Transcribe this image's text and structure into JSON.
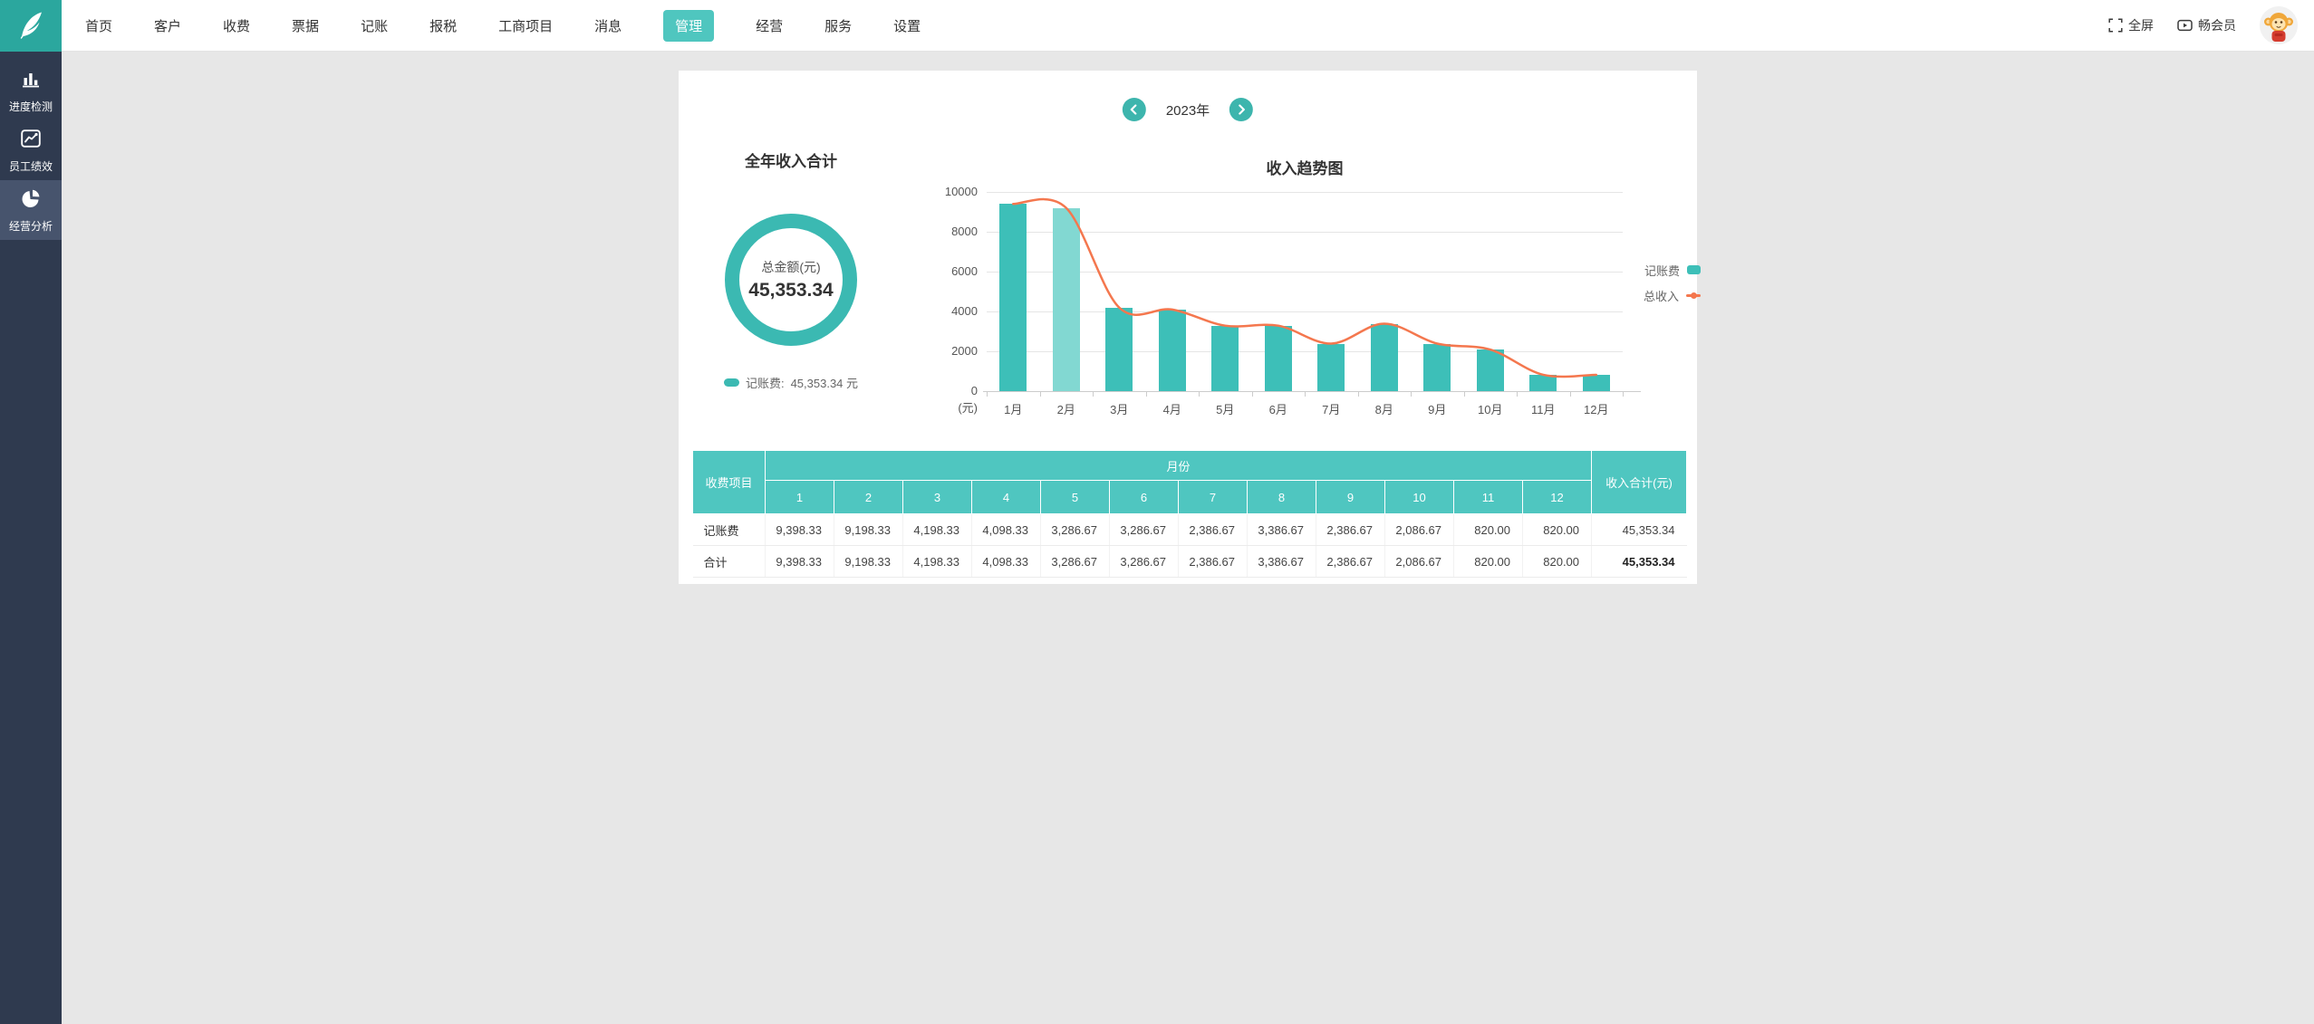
{
  "topbar": {
    "nav": [
      {
        "label": "首页",
        "active": false
      },
      {
        "label": "客户",
        "active": false
      },
      {
        "label": "收费",
        "active": false
      },
      {
        "label": "票据",
        "active": false
      },
      {
        "label": "记账",
        "active": false
      },
      {
        "label": "报税",
        "active": false
      },
      {
        "label": "工商项目",
        "active": false
      },
      {
        "label": "消息",
        "active": false
      },
      {
        "label": "管理",
        "active": true
      },
      {
        "label": "经营",
        "active": false
      },
      {
        "label": "服务",
        "active": false
      },
      {
        "label": "设置",
        "active": false
      }
    ],
    "right": {
      "fullscreen_label": "全屏",
      "member_label": "畅会员"
    }
  },
  "sidebar": {
    "items": [
      {
        "label": "进度检测",
        "icon": "bar-chart-icon",
        "active": false
      },
      {
        "label": "员工绩效",
        "icon": "line-chart-icon",
        "active": false
      },
      {
        "label": "经营分析",
        "icon": "pie-chart-icon",
        "active": true
      }
    ]
  },
  "main": {
    "year_selector": {
      "year": "2023年"
    },
    "summary": {
      "title": "全年收入合计",
      "donut_center_label": "总金额(元)",
      "donut_center_value": "45,353.34",
      "legend_label": "记账费:",
      "legend_value": "45,353.34 元"
    }
  },
  "chart_data": [
    {
      "type": "pie",
      "title": "全年收入合计",
      "center_label": "总金额(元)",
      "center_value": 45353.34,
      "series": [
        {
          "name": "记账费",
          "value": 45353.34,
          "color": "#3bb9b2"
        }
      ],
      "legend_position": "bottom"
    },
    {
      "type": "bar-line",
      "title": "收入趋势图",
      "categories": [
        "1月",
        "2月",
        "3月",
        "4月",
        "5月",
        "6月",
        "7月",
        "8月",
        "9月",
        "10月",
        "11月",
        "12月"
      ],
      "series": [
        {
          "name": "记账费",
          "type": "bar",
          "color": "#3dbfb8",
          "highlight_index": 1,
          "highlight_color": "#82d8d2",
          "values": [
            9398.33,
            9198.33,
            4198.33,
            4098.33,
            3286.67,
            3286.67,
            2386.67,
            3386.67,
            2386.67,
            2086.67,
            820.0,
            820.0
          ]
        },
        {
          "name": "总收入",
          "type": "line",
          "color": "#f4774e",
          "values": [
            9398.33,
            9198.33,
            4198.33,
            4098.33,
            3286.67,
            3286.67,
            2386.67,
            3386.67,
            2386.67,
            2086.67,
            820.0,
            820.0
          ]
        }
      ],
      "xlabel": "",
      "ylabel": "(元)",
      "ylim": [
        0,
        10000
      ],
      "yticks": [
        0,
        2000,
        4000,
        6000,
        8000,
        10000
      ],
      "grid": true,
      "legend_position": "right"
    }
  ],
  "table": {
    "col1_header": "收费项目",
    "group_header": "月份",
    "month_headers": [
      "1",
      "2",
      "3",
      "4",
      "5",
      "6",
      "7",
      "8",
      "9",
      "10",
      "11",
      "12"
    ],
    "total_header": "收入合计(元)",
    "rows": [
      {
        "label": "记账费",
        "values": [
          "9,398.33",
          "9,198.33",
          "4,198.33",
          "4,098.33",
          "3,286.67",
          "3,286.67",
          "2,386.67",
          "3,386.67",
          "2,386.67",
          "2,086.67",
          "820.00",
          "820.00"
        ],
        "total": "45,353.34",
        "total_bold": false
      },
      {
        "label": "合计",
        "values": [
          "9,398.33",
          "9,198.33",
          "4,198.33",
          "4,098.33",
          "3,286.67",
          "3,286.67",
          "2,386.67",
          "3,386.67",
          "2,386.67",
          "2,086.67",
          "820.00",
          "820.00"
        ],
        "total": "45,353.34",
        "total_bold": true
      }
    ]
  }
}
